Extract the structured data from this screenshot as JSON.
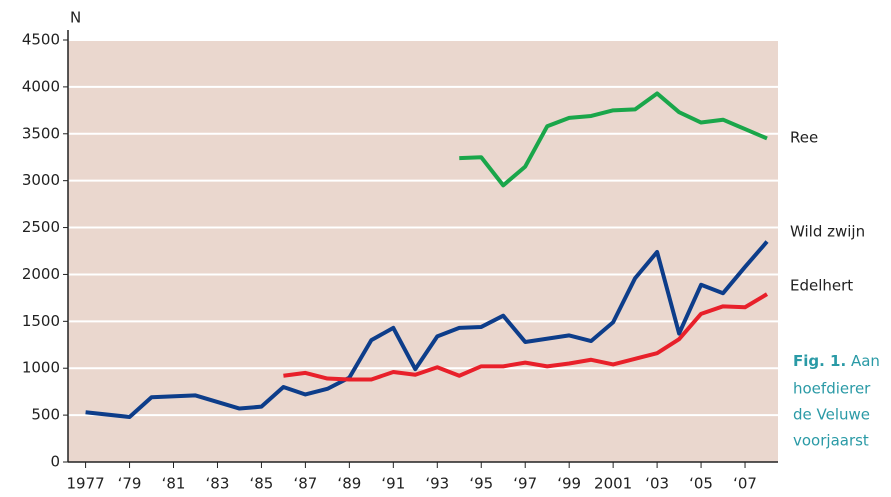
{
  "chart_data": {
    "type": "line",
    "y_label": "N",
    "xlim": [
      1976.2,
      2008.5
    ],
    "ylim": [
      0,
      4500
    ],
    "yticks": [
      0,
      500,
      1000,
      1500,
      2000,
      2500,
      3000,
      3500,
      4000,
      4500
    ],
    "xticks": [
      1977,
      {
        "value": 1979,
        "label": "‘79"
      },
      {
        "value": 1981,
        "label": "‘81"
      },
      {
        "value": 1983,
        "label": "‘83"
      },
      {
        "value": 1985,
        "label": "‘85"
      },
      {
        "value": 1987,
        "label": "‘87"
      },
      {
        "value": 1989,
        "label": "‘89"
      },
      {
        "value": 1991,
        "label": "‘91"
      },
      {
        "value": 1993,
        "label": "‘93"
      },
      {
        "value": 1995,
        "label": "‘95"
      },
      {
        "value": 1997,
        "label": "‘97"
      },
      {
        "value": 1999,
        "label": "‘99"
      },
      2001,
      {
        "value": 2003,
        "label": "‘03"
      },
      {
        "value": 2005,
        "label": "‘05"
      },
      {
        "value": 2007,
        "label": "‘07"
      }
    ],
    "grid": true,
    "series": [
      {
        "name": "Ree",
        "color": "#1aa64a",
        "x": [
          1994,
          1995,
          1996,
          1997,
          1998,
          1999,
          2000,
          2001,
          2002,
          2003,
          2004,
          2005,
          2006,
          2007,
          2008
        ],
        "values": [
          3240,
          3250,
          2950,
          3150,
          3580,
          3670,
          3690,
          3750,
          3760,
          3930,
          3730,
          3620,
          3650,
          3550,
          3450
        ]
      },
      {
        "name": "Wild zwijn",
        "color": "#0d3d8a",
        "x": [
          1977,
          1979,
          1980,
          1982,
          1984,
          1985,
          1986,
          1987,
          1988,
          1989,
          1990,
          1991,
          1992,
          1993,
          1994,
          1995,
          1996,
          1997,
          1999,
          2000,
          2001,
          2002,
          2003,
          2004,
          2005,
          2006,
          2007,
          2008
        ],
        "values": [
          530,
          480,
          690,
          710,
          570,
          590,
          800,
          720,
          780,
          900,
          1300,
          1430,
          990,
          1340,
          1430,
          1440,
          1560,
          1280,
          1350,
          1290,
          1490,
          1960,
          2240,
          1370,
          1890,
          1800,
          2080,
          2350
        ]
      },
      {
        "name": "Edelhert",
        "color": "#e8202a",
        "x": [
          1986,
          1987,
          1988,
          1989,
          1990,
          1991,
          1992,
          1993,
          1994,
          1995,
          1996,
          1997,
          1998,
          1999,
          2000,
          2001,
          2002,
          2003,
          2004,
          2005,
          2006,
          2007,
          2008
        ],
        "values": [
          920,
          950,
          890,
          880,
          880,
          960,
          930,
          1010,
          920,
          1020,
          1020,
          1060,
          1020,
          1050,
          1090,
          1040,
          1100,
          1160,
          1310,
          1580,
          1660,
          1650,
          1790
        ]
      }
    ]
  },
  "caption": {
    "lead": "Fig. 1.",
    "lines": [
      "Aan",
      "hoefdierer",
      "de Veluwe",
      "voorjaarst"
    ]
  }
}
